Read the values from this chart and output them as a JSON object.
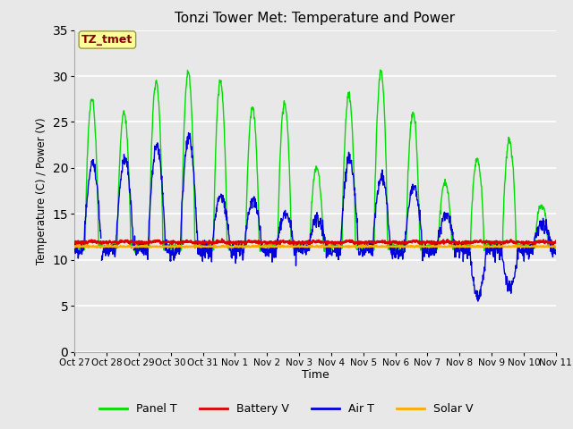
{
  "title": "Tonzi Tower Met: Temperature and Power",
  "xlabel": "Time",
  "ylabel": "Temperature (C) / Power (V)",
  "ylim": [
    0,
    35
  ],
  "yticks": [
    0,
    5,
    10,
    15,
    20,
    25,
    30,
    35
  ],
  "x_labels": [
    "Oct 27",
    "Oct 28",
    "Oct 29",
    "Oct 30",
    "Oct 31",
    "Nov 1",
    "Nov 2",
    "Nov 3",
    "Nov 4",
    "Nov 5",
    "Nov 6",
    "Nov 7",
    "Nov 8",
    "Nov 9",
    "Nov 10",
    "Nov 11"
  ],
  "fig_bg_color": "#e8e8e8",
  "plot_bg_color": "#e8e8e8",
  "grid_color": "#ffffff",
  "legend_labels": [
    "Panel T",
    "Battery V",
    "Air T",
    "Solar V"
  ],
  "legend_colors": [
    "#00dd00",
    "#dd0000",
    "#0000dd",
    "#ffaa00"
  ],
  "annotation_text": "TZ_tmet",
  "annotation_color": "#880000",
  "annotation_bg": "#ffff99",
  "title_fontsize": 11,
  "panel_peaks": [
    27.5,
    26.0,
    29.5,
    30.5,
    29.5,
    26.5,
    27.0,
    20.0,
    28.0,
    30.5,
    26.0,
    18.5,
    21.0,
    23.0,
    16.0
  ],
  "air_peaks": [
    20.5,
    21.0,
    22.5,
    23.5,
    17.0,
    16.5,
    15.0,
    14.5,
    21.0,
    19.0,
    18.0,
    15.0,
    6.0,
    7.0,
    14.0
  ],
  "battery_base": 11.9,
  "solar_base": 11.45,
  "night_base": 11.5,
  "pts_per_day": 96,
  "n_days": 15
}
